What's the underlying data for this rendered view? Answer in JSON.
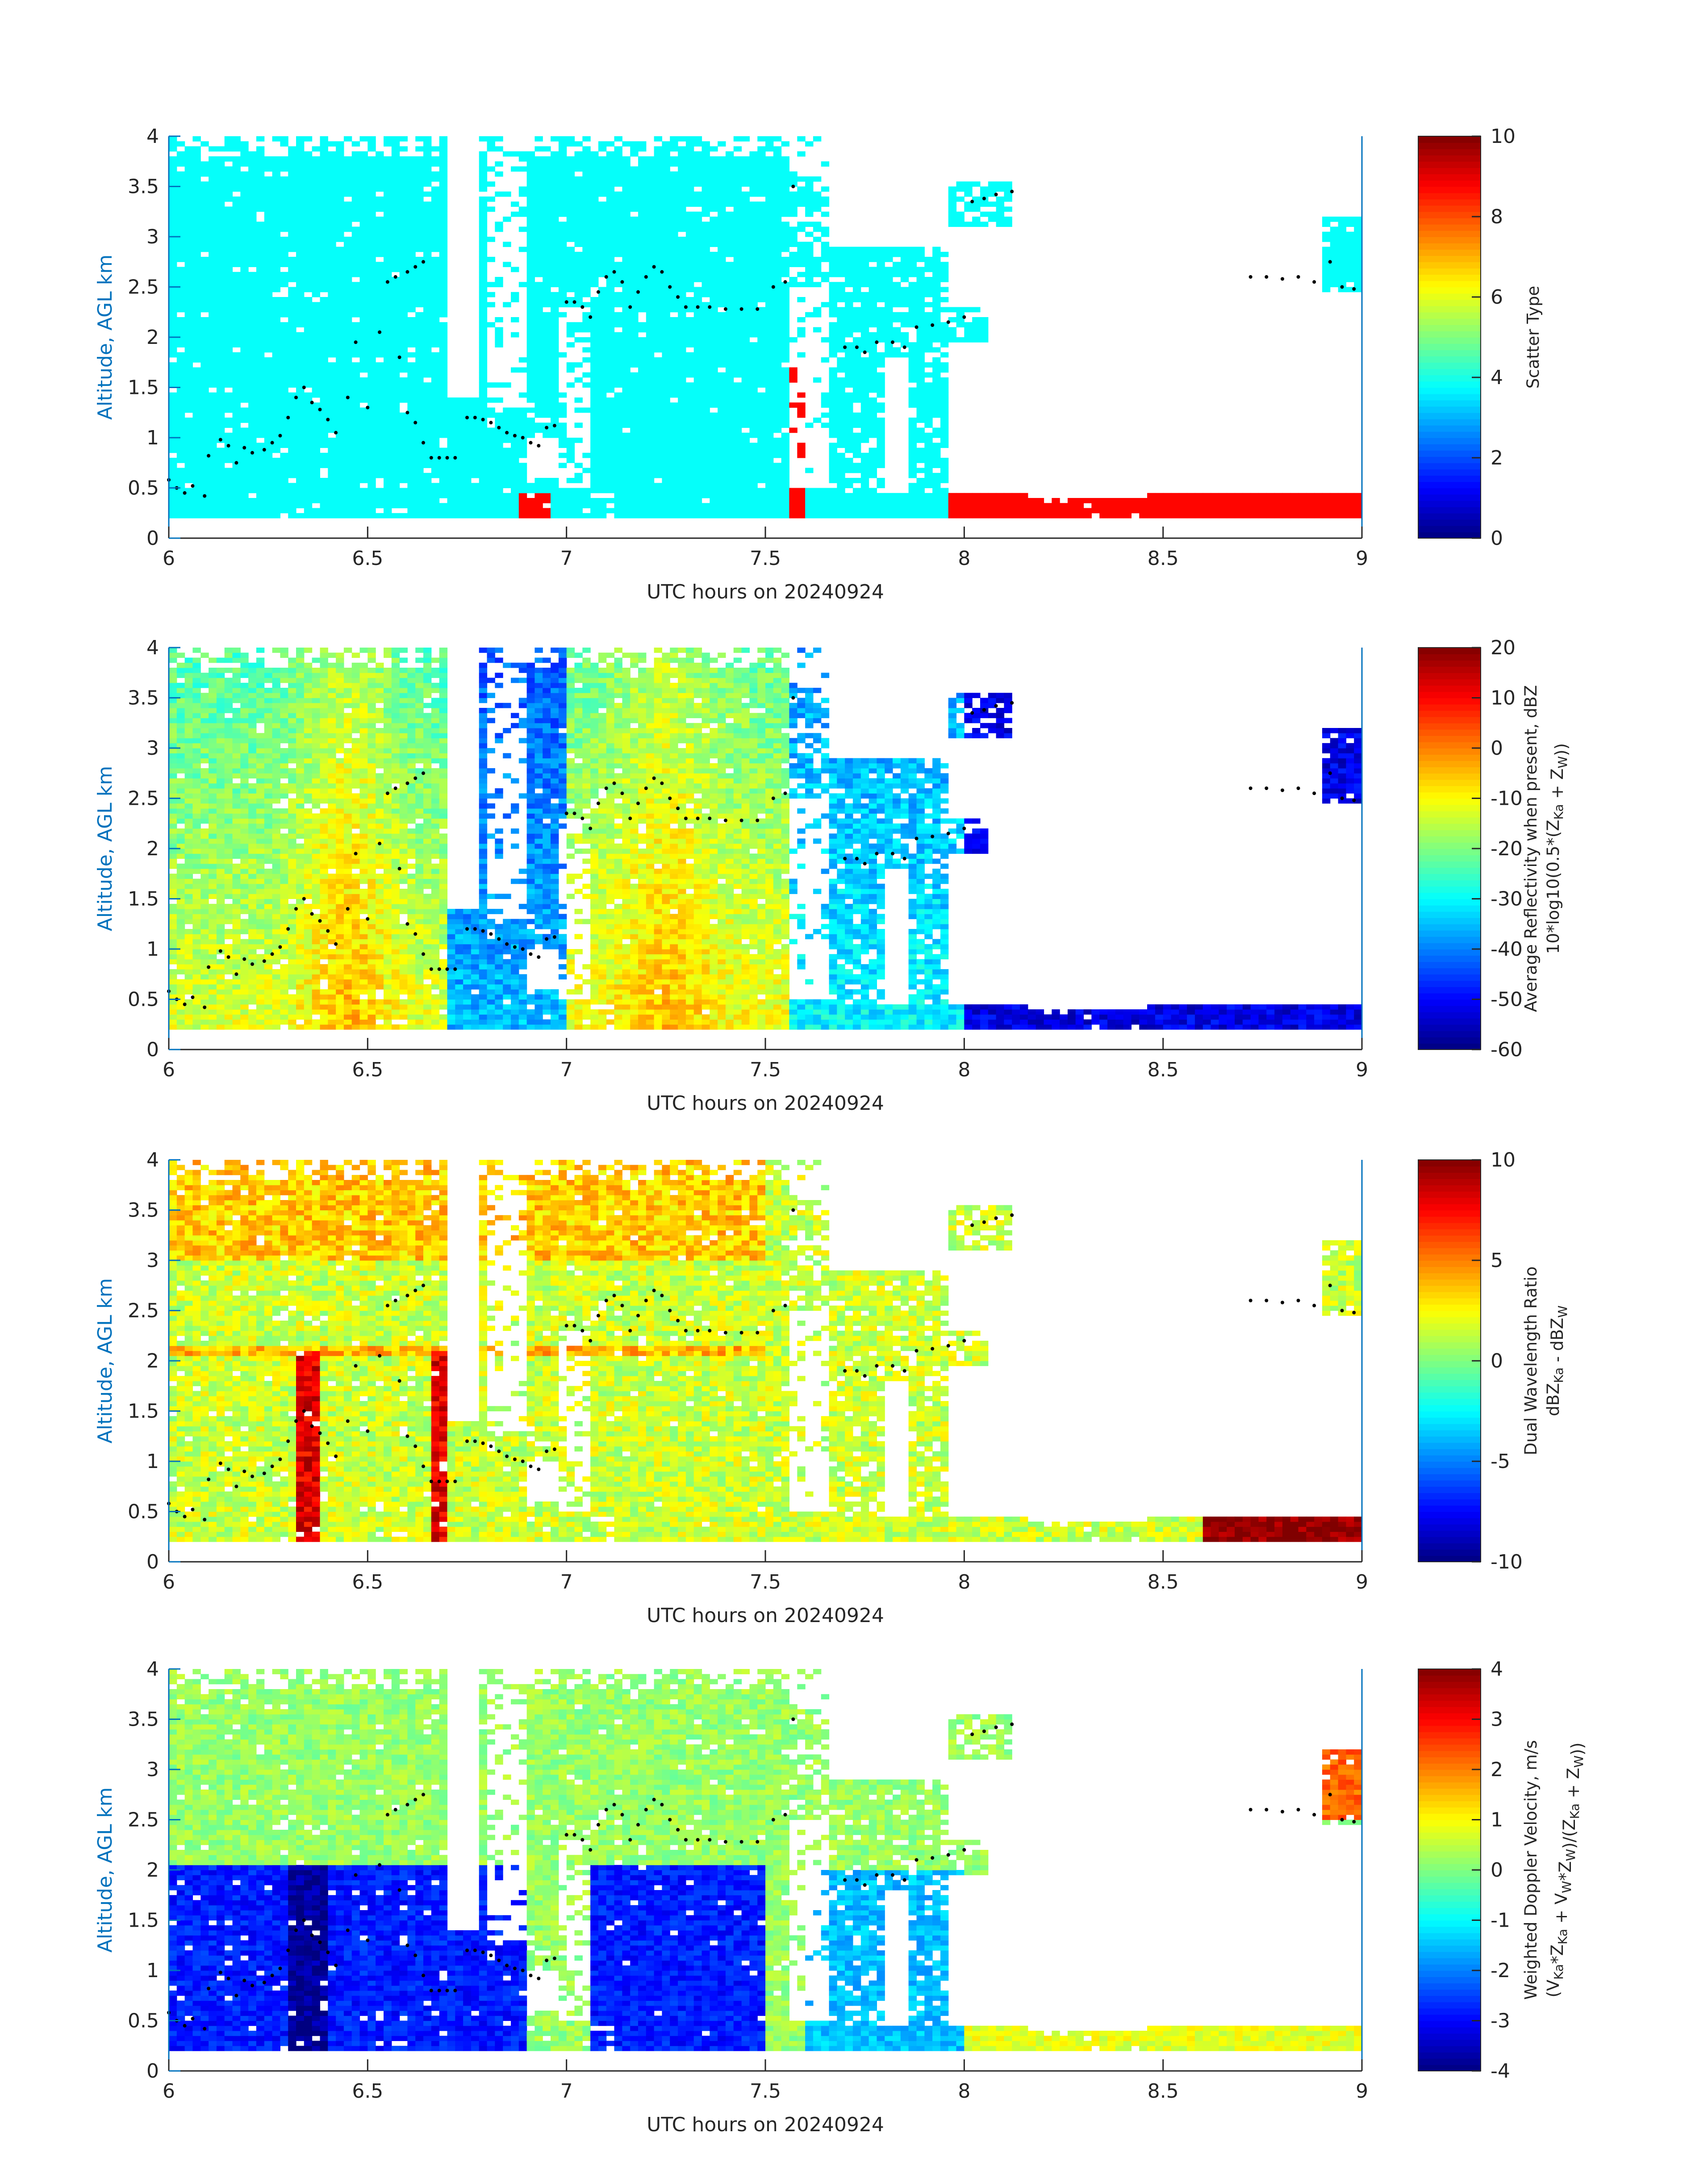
{
  "chart_data": [
    {
      "type": "heatmap",
      "xlabel": "UTC hours on 20240924",
      "ylabel": "Altitude, AGL km",
      "xlim": [
        6,
        9
      ],
      "ylim": [
        0,
        4
      ],
      "x_ticks": [
        "6",
        "6.5",
        "7",
        "7.5",
        "8",
        "8.5",
        "9"
      ],
      "y_ticks": [
        "0",
        "0.5",
        "1",
        "1.5",
        "2",
        "2.5",
        "3",
        "3.5",
        "4"
      ],
      "colorbar": {
        "label": "Scatter Type",
        "clim": [
          0,
          10
        ],
        "ticks": [
          "0",
          "2",
          "4",
          "6",
          "8",
          "10"
        ],
        "colormap": "jet"
      },
      "dominant_values": {
        "cloud": 3.8,
        "rain_near_surface": 8.7
      }
    },
    {
      "type": "heatmap",
      "xlabel": "UTC hours on 20240924",
      "ylabel": "Altitude, AGL km",
      "xlim": [
        6,
        9
      ],
      "ylim": [
        0,
        4
      ],
      "x_ticks": [
        "6",
        "6.5",
        "7",
        "7.5",
        "8",
        "8.5",
        "9"
      ],
      "y_ticks": [
        "0",
        "0.5",
        "1",
        "1.5",
        "2",
        "2.5",
        "3",
        "3.5",
        "4"
      ],
      "colorbar": {
        "label_line1": "Average Reflectivity when present, dBZ",
        "label_line2": "10*log10(0.5*(Z",
        "label_sub1": "Ka",
        "label_mid": " + Z",
        "label_sub2": "W",
        "label_end": "))",
        "clim": [
          -60,
          20
        ],
        "ticks": [
          "-60",
          "-50",
          "-40",
          "-30",
          "-20",
          "-10",
          "0",
          "10",
          "20"
        ],
        "colormap": "jet"
      }
    },
    {
      "type": "heatmap",
      "xlabel": "UTC hours on 20240924",
      "ylabel": "Altitude, AGL km",
      "xlim": [
        6,
        9
      ],
      "ylim": [
        0,
        4
      ],
      "x_ticks": [
        "6",
        "6.5",
        "7",
        "7.5",
        "8",
        "8.5",
        "9"
      ],
      "y_ticks": [
        "0",
        "0.5",
        "1",
        "1.5",
        "2",
        "2.5",
        "3",
        "3.5",
        "4"
      ],
      "colorbar": {
        "label_line1": "Dual Wavelength Ratio",
        "label_line2": "dBZ",
        "label_sub1": "Ka",
        "label_mid": " - dBZ",
        "label_sub2": "W",
        "label_end": "",
        "clim": [
          -10,
          10
        ],
        "ticks": [
          "-10",
          "-5",
          "0",
          "5",
          "10"
        ],
        "colormap": "jet"
      }
    },
    {
      "type": "heatmap",
      "xlabel": "UTC hours on 20240924",
      "ylabel": "Altitude, AGL km",
      "xlim": [
        6,
        9
      ],
      "ylim": [
        0,
        4
      ],
      "x_ticks": [
        "6",
        "6.5",
        "7",
        "7.5",
        "8",
        "8.5",
        "9"
      ],
      "y_ticks": [
        "0",
        "0.5",
        "1",
        "1.5",
        "2",
        "2.5",
        "3",
        "3.5",
        "4"
      ],
      "colorbar": {
        "label_line1": "Weighted Doppler Velocity, m/s",
        "label_line2": "(V",
        "label_sub1": "Ka",
        "label_mid": "*Z",
        "label_sub2": "Ka",
        "label_mid2": " + V",
        "label_sub3": "W",
        "label_mid3": "*Z",
        "label_sub4": "W",
        "label_mid4": ")/(Z",
        "label_sub5": "Ka",
        "label_mid5": " + Z",
        "label_sub6": "W",
        "label_end": "))",
        "clim": [
          -4,
          4
        ],
        "ticks": [
          "-4",
          "-3",
          "-2",
          "-1",
          "0",
          "1",
          "2",
          "3",
          "4"
        ],
        "colormap": "jet"
      }
    }
  ],
  "cloud_top_markers": [
    [
      6.0,
      0.58
    ],
    [
      6.02,
      0.5
    ],
    [
      6.04,
      0.45
    ],
    [
      6.06,
      0.52
    ],
    [
      6.09,
      0.42
    ],
    [
      6.1,
      0.82
    ],
    [
      6.13,
      0.98
    ],
    [
      6.15,
      0.92
    ],
    [
      6.17,
      0.75
    ],
    [
      6.19,
      0.9
    ],
    [
      6.21,
      0.85
    ],
    [
      6.24,
      0.88
    ],
    [
      6.26,
      0.95
    ],
    [
      6.28,
      1.02
    ],
    [
      6.3,
      1.2
    ],
    [
      6.32,
      1.4
    ],
    [
      6.34,
      1.5
    ],
    [
      6.36,
      1.35
    ],
    [
      6.38,
      1.28
    ],
    [
      6.4,
      1.18
    ],
    [
      6.42,
      1.05
    ],
    [
      6.45,
      1.4
    ],
    [
      6.47,
      1.95
    ],
    [
      6.5,
      1.3
    ],
    [
      6.53,
      2.05
    ],
    [
      6.55,
      2.55
    ],
    [
      6.57,
      2.6
    ],
    [
      6.6,
      2.65
    ],
    [
      6.62,
      2.7
    ],
    [
      6.64,
      2.75
    ],
    [
      6.58,
      1.8
    ],
    [
      6.6,
      1.25
    ],
    [
      6.62,
      1.15
    ],
    [
      6.64,
      0.95
    ],
    [
      6.66,
      0.8
    ],
    [
      6.68,
      0.8
    ],
    [
      6.7,
      0.8
    ],
    [
      6.72,
      0.8
    ],
    [
      6.75,
      1.2
    ],
    [
      6.77,
      1.2
    ],
    [
      6.79,
      1.18
    ],
    [
      6.81,
      1.15
    ],
    [
      6.83,
      1.1
    ],
    [
      6.85,
      1.05
    ],
    [
      6.87,
      1.02
    ],
    [
      6.89,
      1.0
    ],
    [
      6.91,
      0.95
    ],
    [
      6.93,
      0.92
    ],
    [
      6.95,
      1.1
    ],
    [
      6.97,
      1.12
    ],
    [
      7.0,
      2.35
    ],
    [
      7.02,
      2.35
    ],
    [
      7.04,
      2.3
    ],
    [
      7.06,
      2.2
    ],
    [
      7.08,
      2.45
    ],
    [
      7.1,
      2.6
    ],
    [
      7.12,
      2.65
    ],
    [
      7.14,
      2.55
    ],
    [
      7.16,
      2.3
    ],
    [
      7.18,
      2.45
    ],
    [
      7.2,
      2.6
    ],
    [
      7.22,
      2.7
    ],
    [
      7.24,
      2.65
    ],
    [
      7.26,
      2.5
    ],
    [
      7.28,
      2.4
    ],
    [
      7.3,
      2.3
    ],
    [
      7.33,
      2.3
    ],
    [
      7.36,
      2.3
    ],
    [
      7.4,
      2.28
    ],
    [
      7.44,
      2.28
    ],
    [
      7.48,
      2.28
    ],
    [
      7.52,
      2.5
    ],
    [
      7.55,
      2.55
    ],
    [
      7.57,
      3.5
    ],
    [
      7.7,
      1.9
    ],
    [
      7.73,
      1.9
    ],
    [
      7.75,
      1.85
    ],
    [
      7.78,
      1.95
    ],
    [
      7.82,
      1.95
    ],
    [
      7.85,
      1.9
    ],
    [
      7.88,
      2.1
    ],
    [
      7.92,
      2.12
    ],
    [
      7.96,
      2.15
    ],
    [
      8.0,
      2.2
    ],
    [
      8.02,
      3.35
    ],
    [
      8.05,
      3.38
    ],
    [
      8.08,
      3.42
    ],
    [
      8.12,
      3.45
    ],
    [
      8.72,
      2.6
    ],
    [
      8.76,
      2.6
    ],
    [
      8.8,
      2.58
    ],
    [
      8.84,
      2.6
    ],
    [
      8.88,
      2.55
    ],
    [
      8.92,
      2.75
    ],
    [
      8.95,
      2.5
    ],
    [
      8.98,
      2.48
    ]
  ],
  "colors": {
    "axis_label_blue": "#0072BD",
    "text": "#262626",
    "marker": "#000000"
  }
}
